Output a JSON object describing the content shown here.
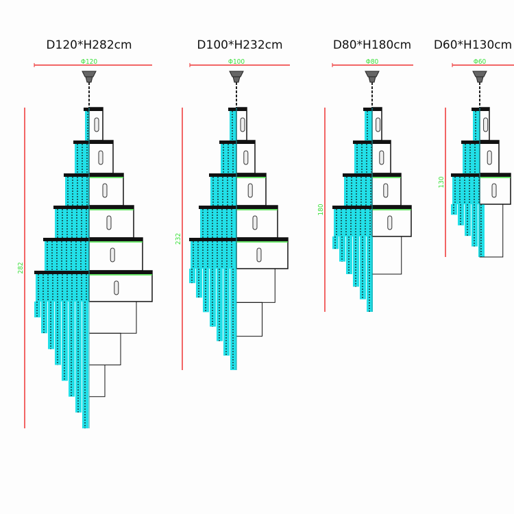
{
  "models": [
    {
      "title": "D120*H282cm",
      "diameter_label": "Φ120",
      "height_label": "282"
    },
    {
      "title": "D100*H232cm",
      "diameter_label": "Φ100",
      "height_label": "232"
    },
    {
      "title": "D80*H180cm",
      "diameter_label": "Φ80",
      "height_label": "180"
    },
    {
      "title": "D60*H130cm",
      "diameter_label": "Φ60",
      "height_label": "130"
    }
  ],
  "colors": {
    "crystal": "#22e0e8",
    "dimension_line": "#ee3333",
    "dimension_text": "#3be03b",
    "frame": "#111111"
  }
}
